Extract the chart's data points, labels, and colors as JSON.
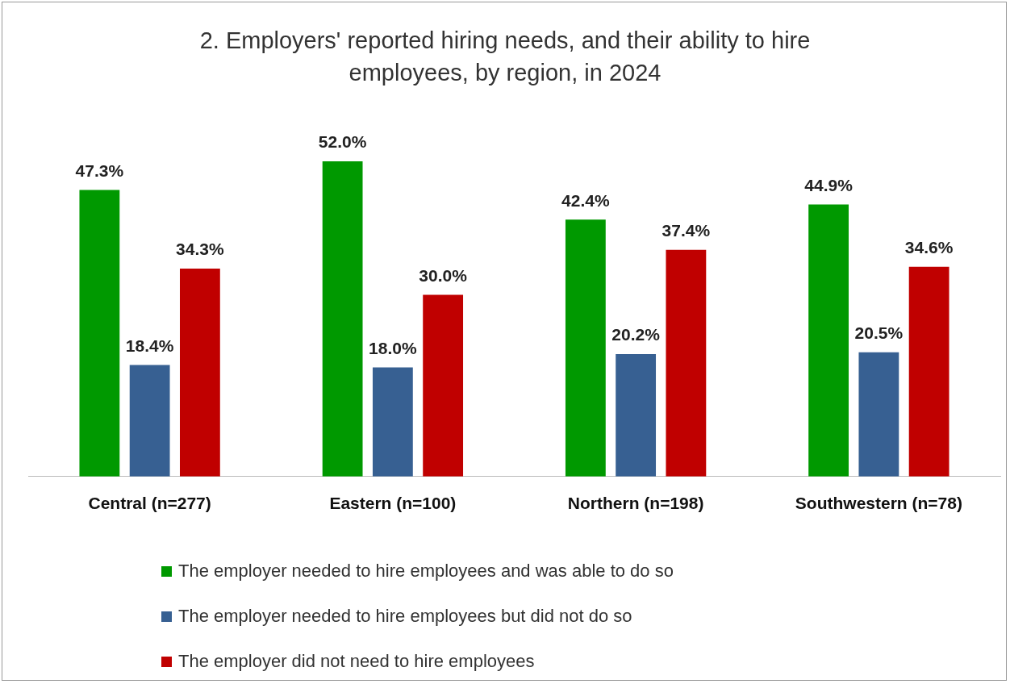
{
  "chart_data": {
    "type": "bar",
    "title": "2. Employers' reported hiring needs, and their ability to hire employees, by region, in 2024",
    "categories": [
      "Central (n=277)",
      "Eastern (n=100)",
      "Northern (n=198)",
      "Southwestern (n=78)"
    ],
    "series": [
      {
        "name": "The employer needed to hire employees and was able to do so",
        "color": "#009900",
        "values": [
          47.3,
          52.0,
          42.4,
          44.9
        ],
        "value_labels": [
          "47.3%",
          "52.0%",
          "42.4%",
          "44.9%"
        ]
      },
      {
        "name": "The employer needed to hire employees but did not do so",
        "color": "#376092",
        "values": [
          18.4,
          18.0,
          20.2,
          20.5
        ],
        "value_labels": [
          "18.4%",
          "18.0%",
          "20.2%",
          "20.5%"
        ]
      },
      {
        "name": "The employer did not need to hire employees",
        "color": "#c00000",
        "values": [
          34.3,
          30.0,
          37.4,
          34.6
        ],
        "value_labels": [
          "34.3%",
          "30.0%",
          "37.4%",
          "34.6%"
        ]
      }
    ],
    "legend": "bottom",
    "grid": false
  }
}
